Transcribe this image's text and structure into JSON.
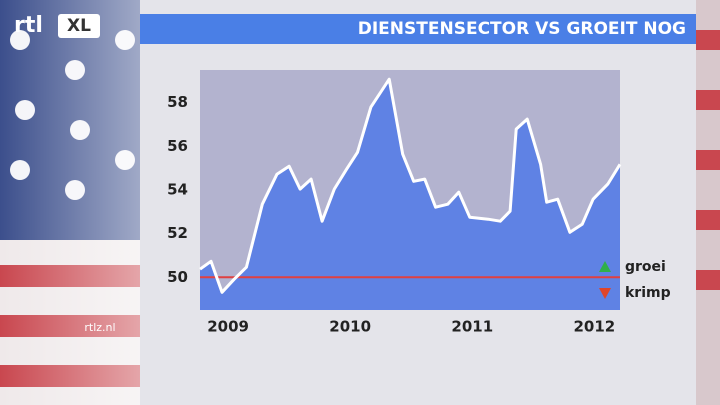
{
  "brand": {
    "logo": "rtl",
    "logo_tag": "XL",
    "site": "rtlz.nl"
  },
  "chart_data": {
    "type": "line",
    "title": "DIENSTENSECTOR VS GROEIT NOG",
    "x": [
      2008.77,
      2008.86,
      2008.95,
      2009.05,
      2009.15,
      2009.28,
      2009.4,
      2009.5,
      2009.59,
      2009.68,
      2009.77,
      2009.87,
      2009.97,
      2010.06,
      2010.17,
      2010.32,
      2010.43,
      2010.52,
      2010.61,
      2010.7,
      2010.8,
      2010.89,
      2010.98,
      2011.13,
      2011.23,
      2011.31,
      2011.36,
      2011.45,
      2011.56,
      2011.61,
      2011.7,
      2011.8,
      2011.9,
      2011.99,
      2012.11,
      2012.21
    ],
    "series": [
      {
        "name": "dienstensector",
        "color": "#ffffff",
        "fill": "#5f82e4",
        "values": [
          50.37,
          50.73,
          49.31,
          49.91,
          50.46,
          53.35,
          54.72,
          55.09,
          54.04,
          54.5,
          52.57,
          54.04,
          54.95,
          55.73,
          57.8,
          59.08,
          55.64,
          54.4,
          54.5,
          53.21,
          53.35,
          53.9,
          52.75,
          52.66,
          52.57,
          53.03,
          56.79,
          57.25,
          55.18,
          53.44,
          53.58,
          52.06,
          52.43,
          53.58,
          54.27,
          55.18
        ]
      }
    ],
    "xlim": [
      2008.77,
      2012.21
    ],
    "xticks": [
      2009,
      2010,
      2011,
      2012
    ],
    "ylim": [
      48.5,
      59.5
    ],
    "yticks": [
      50,
      52,
      54,
      56,
      58
    ],
    "reference": {
      "value": 50,
      "color": "#e04040"
    },
    "legend": [
      {
        "name": "groei",
        "color": "#2fb04a"
      },
      {
        "name": "krimp",
        "color": "#e0452a"
      }
    ],
    "plot_background": "#b3b3cf"
  }
}
